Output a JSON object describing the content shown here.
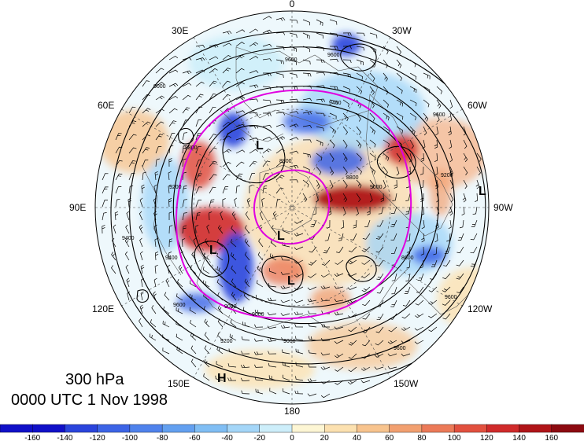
{
  "title": {
    "level": "300 hPa",
    "time": "0000 UTC 1 Nov 1998"
  },
  "map": {
    "projection": "north polar stereographic",
    "longitude_labels": {
      "top": "0",
      "top_left": "30E",
      "top_right": "30W",
      "upper_left": "60E",
      "upper_right": "60W",
      "left": "90E",
      "right": "90W",
      "lower_left": "120E",
      "lower_right": "120W",
      "bottom_left": "150E",
      "bottom_right": "150W",
      "bottom": "180"
    },
    "contour_labels": [
      "9600",
      "9600",
      "9000",
      "9400",
      "8800",
      "9200",
      "9600",
      "8800",
      "9000",
      "9400",
      "9200",
      "9600",
      "9000",
      "8600",
      "9400",
      "9600",
      "9000",
      "8800",
      "9600",
      "9200",
      "9000"
    ],
    "pressure_centers": [
      {
        "label": "L"
      },
      {
        "label": "L"
      },
      {
        "label": "L"
      },
      {
        "label": "L"
      },
      {
        "label": "L"
      },
      {
        "label": "H"
      }
    ],
    "jet_contour_color": "#e000e0"
  },
  "colorbar": {
    "ticks": [
      "-160",
      "-140",
      "-120",
      "-100",
      "-80",
      "-60",
      "-40",
      "-20",
      "0",
      "20",
      "40",
      "60",
      "80",
      "100",
      "120",
      "140",
      "160"
    ],
    "colors": [
      "#1010c8",
      "#2a44dc",
      "#3c64e6",
      "#4f82ec",
      "#63a0f0",
      "#80bef4",
      "#a4d6f8",
      "#cdeefa",
      "#fdf6d4",
      "#fce1b0",
      "#f8c48e",
      "#f2a070",
      "#ec7a58",
      "#e2503e",
      "#d02a2a",
      "#b01418",
      "#8c0a10"
    ]
  }
}
